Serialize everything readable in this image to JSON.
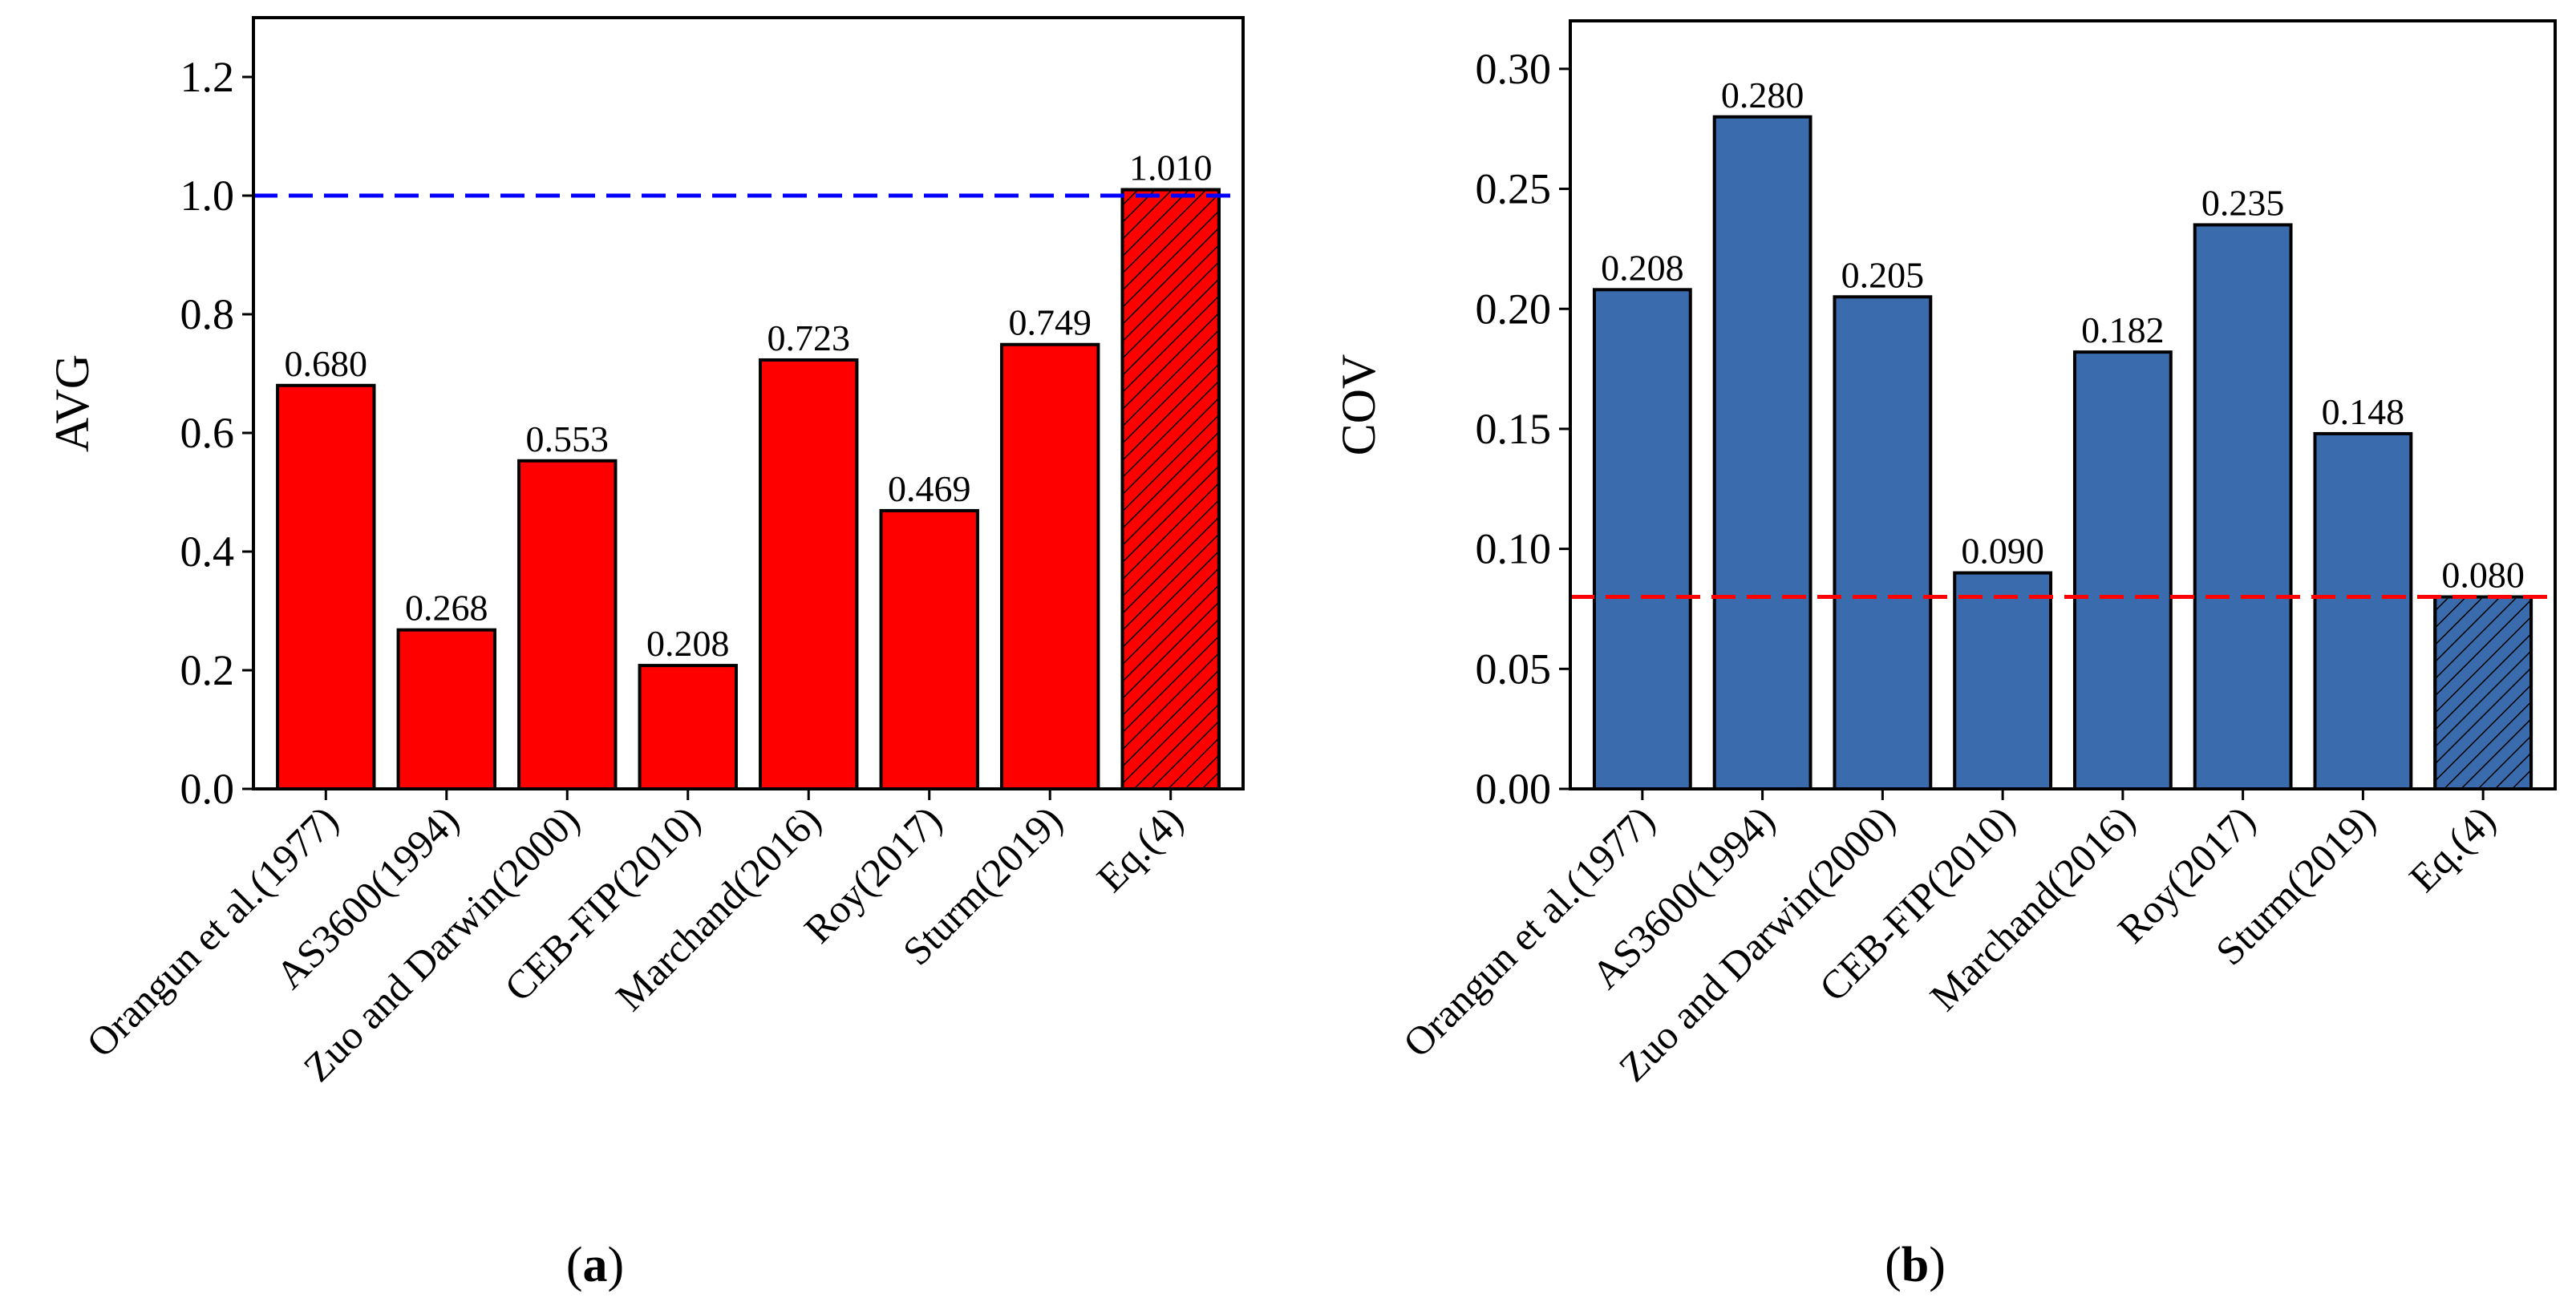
{
  "figure": {
    "panels": [
      {
        "label_open": "(",
        "label_letter": "a",
        "label_close": ")"
      },
      {
        "label_open": "(",
        "label_letter": "b",
        "label_close": ")"
      }
    ]
  },
  "chart_data": [
    {
      "type": "bar",
      "title": "",
      "xlabel": "",
      "ylabel": "AVG",
      "ylim": [
        0,
        1.3
      ],
      "yticks": [
        0.0,
        0.2,
        0.4,
        0.6,
        0.8,
        1.0,
        1.2
      ],
      "ytick_labels": [
        "0.0",
        "0.2",
        "0.4",
        "0.6",
        "0.8",
        "1.0",
        "1.2"
      ],
      "categories": [
        "Orangun et al.(1977)",
        "AS3600(1994)",
        "Zuo and Darwin(2000)",
        "CEB-FIP(2010)",
        "Marchand(2016)",
        "Roy(2017)",
        "Sturm(2019)",
        "Eq.(4)"
      ],
      "values": [
        0.68,
        0.268,
        0.553,
        0.208,
        0.723,
        0.469,
        0.749,
        1.01
      ],
      "value_labels": [
        "0.680",
        "0.268",
        "0.553",
        "0.208",
        "0.723",
        "0.469",
        "0.749",
        "1.010"
      ],
      "hatched": [
        false,
        false,
        false,
        false,
        false,
        false,
        false,
        true
      ],
      "bar_color": "#ff0000",
      "edge_color": "#000000",
      "reference_line": {
        "value": 1.0,
        "color": "#0000ff",
        "style": "dashed"
      },
      "grid": false
    },
    {
      "type": "bar",
      "title": "",
      "xlabel": "",
      "ylabel": "COV",
      "ylim": [
        0,
        0.32
      ],
      "yticks": [
        0.0,
        0.05,
        0.1,
        0.15,
        0.2,
        0.25,
        0.3
      ],
      "ytick_labels": [
        "0.00",
        "0.05",
        "0.10",
        "0.15",
        "0.20",
        "0.25",
        "0.30"
      ],
      "categories": [
        "Orangun et al.(1977)",
        "AS3600(1994)",
        "Zuo and Darwin(2000)",
        "CEB-FIP(2010)",
        "Marchand(2016)",
        "Roy(2017)",
        "Sturm(2019)",
        "Eq.(4)"
      ],
      "values": [
        0.208,
        0.28,
        0.205,
        0.09,
        0.182,
        0.235,
        0.148,
        0.08
      ],
      "value_labels": [
        "0.208",
        "0.280",
        "0.205",
        "0.090",
        "0.182",
        "0.235",
        "0.148",
        "0.080"
      ],
      "hatched": [
        false,
        false,
        false,
        false,
        false,
        false,
        false,
        true
      ],
      "bar_color": "#3a6bad",
      "edge_color": "#000000",
      "reference_line": {
        "value": 0.08,
        "color": "#ff0000",
        "style": "dashed"
      },
      "grid": false
    }
  ]
}
